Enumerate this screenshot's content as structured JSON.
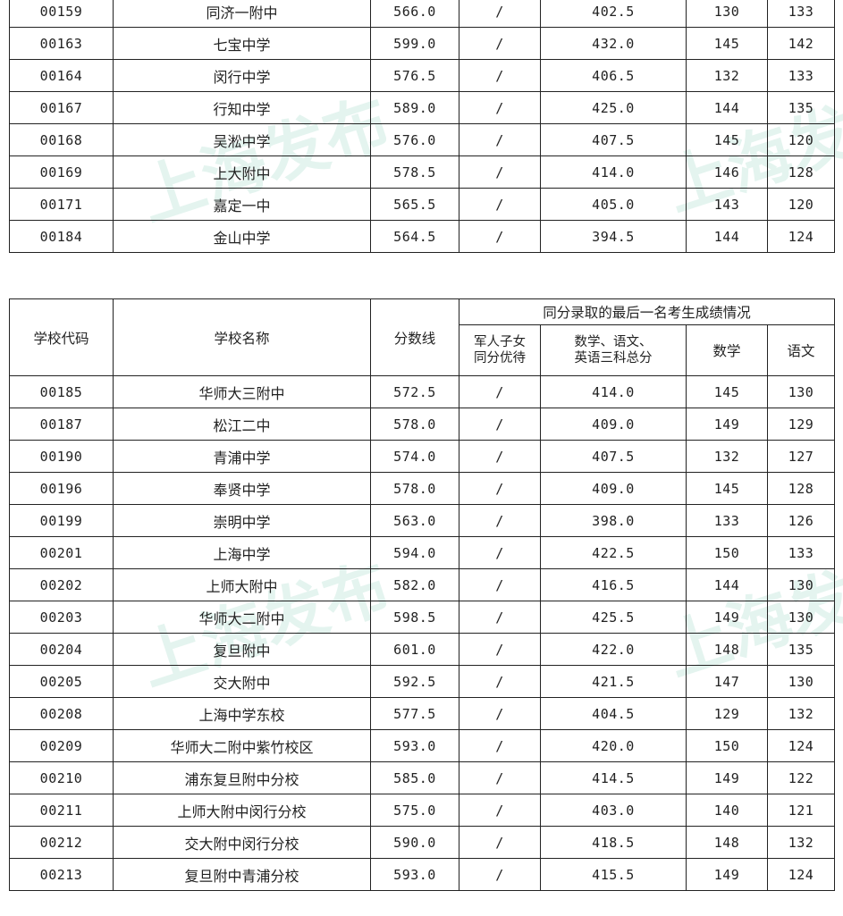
{
  "table1": {
    "rows": [
      [
        "00159",
        "同济一附中",
        "566.0",
        "/",
        "402.5",
        "130",
        "133"
      ],
      [
        "00163",
        "七宝中学",
        "599.0",
        "/",
        "432.0",
        "145",
        "142"
      ],
      [
        "00164",
        "闵行中学",
        "576.5",
        "/",
        "406.5",
        "132",
        "133"
      ],
      [
        "00167",
        "行知中学",
        "589.0",
        "/",
        "425.0",
        "144",
        "135"
      ],
      [
        "00168",
        "吴淞中学",
        "576.0",
        "/",
        "407.5",
        "145",
        "120"
      ],
      [
        "00169",
        "上大附中",
        "578.5",
        "/",
        "414.0",
        "146",
        "128"
      ],
      [
        "00171",
        "嘉定一中",
        "565.5",
        "/",
        "405.0",
        "143",
        "120"
      ],
      [
        "00184",
        "金山中学",
        "564.5",
        "/",
        "394.5",
        "144",
        "124"
      ]
    ]
  },
  "table2": {
    "headers": {
      "code": "学校代码",
      "name": "学校名称",
      "score": "分数线",
      "group": "同分录取的最后一名考生成绩情况",
      "military_line1": "军人子女",
      "military_line2": "同分优待",
      "total_line1": "数学、语文、",
      "total_line2": "英语三科总分",
      "math": "数学",
      "chinese": "语文"
    },
    "rows": [
      [
        "00185",
        "华师大三附中",
        "572.5",
        "/",
        "414.0",
        "145",
        "130"
      ],
      [
        "00187",
        "松江二中",
        "578.0",
        "/",
        "409.0",
        "149",
        "129"
      ],
      [
        "00190",
        "青浦中学",
        "574.0",
        "/",
        "407.5",
        "132",
        "127"
      ],
      [
        "00196",
        "奉贤中学",
        "578.0",
        "/",
        "409.0",
        "145",
        "128"
      ],
      [
        "00199",
        "崇明中学",
        "563.0",
        "/",
        "398.0",
        "133",
        "126"
      ],
      [
        "00201",
        "上海中学",
        "594.0",
        "/",
        "422.5",
        "150",
        "133"
      ],
      [
        "00202",
        "上师大附中",
        "582.0",
        "/",
        "416.5",
        "144",
        "130"
      ],
      [
        "00203",
        "华师大二附中",
        "598.5",
        "/",
        "425.5",
        "149",
        "130"
      ],
      [
        "00204",
        "复旦附中",
        "601.0",
        "/",
        "422.0",
        "148",
        "135"
      ],
      [
        "00205",
        "交大附中",
        "592.5",
        "/",
        "421.5",
        "147",
        "130"
      ],
      [
        "00208",
        "上海中学东校",
        "577.5",
        "/",
        "404.5",
        "129",
        "132"
      ],
      [
        "00209",
        "华师大二附中紫竹校区",
        "593.0",
        "/",
        "420.0",
        "150",
        "124"
      ],
      [
        "00210",
        "浦东复旦附中分校",
        "585.0",
        "/",
        "414.5",
        "149",
        "122"
      ],
      [
        "00211",
        "上师大附中闵行分校",
        "575.0",
        "/",
        "403.0",
        "140",
        "121"
      ],
      [
        "00212",
        "交大附中闵行分校",
        "590.0",
        "/",
        "418.5",
        "148",
        "132"
      ],
      [
        "00213",
        "复旦附中青浦分校",
        "593.0",
        "/",
        "415.5",
        "149",
        "124"
      ]
    ]
  },
  "watermarks": [
    "上海发布",
    "上海发",
    "上海发布",
    "上海发"
  ]
}
